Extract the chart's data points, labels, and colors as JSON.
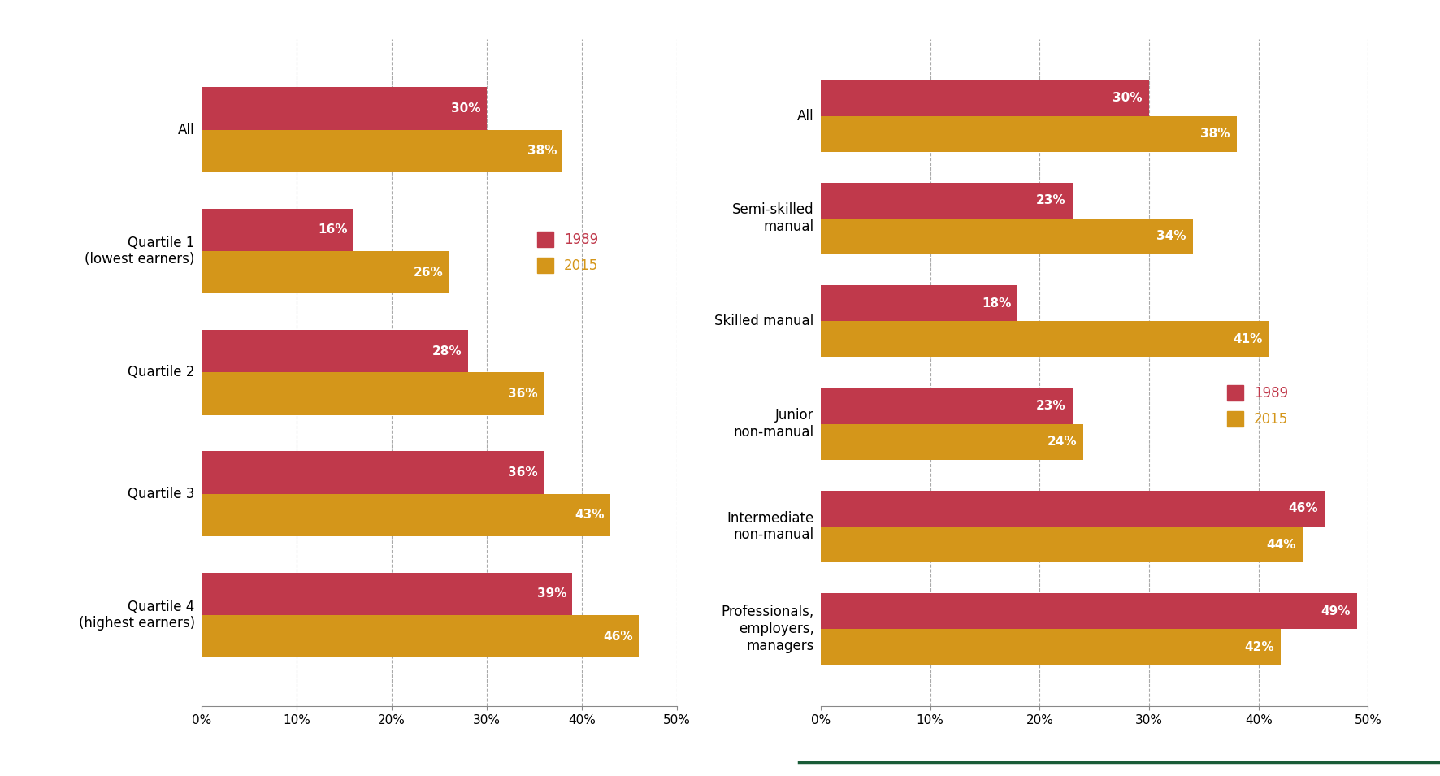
{
  "left_categories": [
    "Quartile 4\n(highest earners)",
    "Quartile 3",
    "Quartile 2",
    "Quartile 1\n(lowest earners)",
    "All"
  ],
  "left_1989": [
    39,
    36,
    28,
    16,
    30
  ],
  "left_2015": [
    46,
    43,
    36,
    26,
    38
  ],
  "right_categories": [
    "Professionals,\nemployers,\nmanagers",
    "Intermediate\nnon-manual",
    "Junior\nnon-manual",
    "Skilled manual",
    "Semi-skilled\nmanual",
    "All"
  ],
  "right_1989": [
    49,
    46,
    23,
    18,
    23,
    30
  ],
  "right_2015": [
    42,
    44,
    24,
    41,
    34,
    38
  ],
  "color_1989": "#C0394B",
  "color_2015": "#D4961A",
  "xlim": [
    0,
    50
  ],
  "xticks": [
    0,
    10,
    20,
    30,
    40,
    50
  ],
  "xticklabels": [
    "0%",
    "10%",
    "20%",
    "30%",
    "40%",
    "50%"
  ],
  "grid_color": "#AAAAAA",
  "bar_height": 0.35,
  "label_fontsize": 12,
  "tick_fontsize": 11,
  "legend_fontsize": 12,
  "value_fontsize": 11,
  "background_color": "#FFFFFF",
  "separator_color": "#1A5C38"
}
